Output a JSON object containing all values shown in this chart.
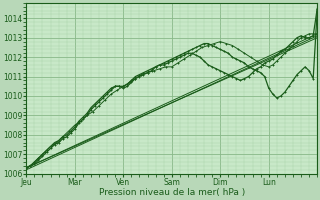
{
  "title": "",
  "xlabel": "Pression niveau de la mer( hPa )",
  "ylabel": "",
  "bg_color": "#b8d8b8",
  "plot_bg_color": "#c8e8c8",
  "grid_major_color": "#88b888",
  "grid_minor_color": "#a8d0a8",
  "line_color": "#1a5c1a",
  "ylim": [
    1006.0,
    1014.8
  ],
  "yticks": [
    1006,
    1007,
    1008,
    1009,
    1010,
    1011,
    1012,
    1013,
    1014
  ],
  "x_day_labels": [
    "Jeu",
    "Mar",
    "Ven",
    "Sam",
    "Dim",
    "Lun"
  ],
  "x_day_positions": [
    0,
    24,
    48,
    72,
    96,
    120
  ],
  "total_hours": 144,
  "line_straight1": {
    "x": [
      0,
      144
    ],
    "y": [
      1006.3,
      1013.2
    ]
  },
  "line_straight2": {
    "x": [
      0,
      144
    ],
    "y": [
      1006.3,
      1013.0
    ]
  },
  "line_straight3": {
    "x": [
      0,
      144
    ],
    "y": [
      1006.2,
      1013.1
    ]
  },
  "line_wavy1": {
    "x": [
      0,
      2,
      4,
      6,
      8,
      10,
      12,
      14,
      16,
      18,
      20,
      22,
      24,
      26,
      28,
      30,
      32,
      34,
      36,
      38,
      40,
      42,
      44,
      46,
      48,
      50,
      52,
      54,
      56,
      58,
      60,
      62,
      64,
      66,
      68,
      70,
      72,
      74,
      76,
      78,
      80,
      82,
      84,
      86,
      88,
      90,
      92,
      94,
      96,
      98,
      100,
      102,
      104,
      106,
      108,
      110,
      112,
      114,
      116,
      118,
      120,
      122,
      124,
      126,
      128,
      130,
      132,
      134,
      136,
      138,
      140,
      142,
      144
    ],
    "y": [
      1006.3,
      1006.4,
      1006.5,
      1006.7,
      1006.9,
      1007.1,
      1007.3,
      1007.5,
      1007.6,
      1007.8,
      1007.9,
      1008.1,
      1008.3,
      1008.6,
      1008.8,
      1009.0,
      1009.3,
      1009.5,
      1009.7,
      1009.9,
      1010.1,
      1010.3,
      1010.5,
      1010.5,
      1010.5,
      1010.6,
      1010.8,
      1011.0,
      1011.1,
      1011.2,
      1011.3,
      1011.4,
      1011.5,
      1011.6,
      1011.6,
      1011.7,
      1011.8,
      1011.9,
      1012.0,
      1012.1,
      1012.2,
      1012.2,
      1012.1,
      1012.0,
      1011.8,
      1011.6,
      1011.5,
      1011.4,
      1011.3,
      1011.2,
      1011.1,
      1011.0,
      1010.9,
      1010.8,
      1010.9,
      1011.0,
      1011.2,
      1011.4,
      1011.5,
      1011.7,
      1011.8,
      1011.9,
      1012.1,
      1012.3,
      1012.4,
      1012.6,
      1012.8,
      1013.0,
      1013.1,
      1013.0,
      1013.0,
      1013.1,
      1014.5
    ]
  },
  "line_wavy2": {
    "x": [
      0,
      2,
      4,
      6,
      8,
      10,
      12,
      14,
      16,
      18,
      20,
      22,
      24,
      26,
      28,
      30,
      32,
      34,
      36,
      38,
      40,
      42,
      44,
      46,
      48,
      50,
      52,
      54,
      56,
      58,
      60,
      62,
      64,
      66,
      68,
      70,
      72,
      74,
      76,
      78,
      80,
      82,
      84,
      86,
      88,
      90,
      92,
      94,
      96,
      98,
      100,
      102,
      104,
      106,
      108,
      110,
      112,
      114,
      116,
      118,
      120,
      122,
      124,
      126,
      128,
      130,
      132,
      134,
      136,
      138,
      140,
      142,
      144
    ],
    "y": [
      1006.3,
      1006.4,
      1006.6,
      1006.8,
      1007.0,
      1007.2,
      1007.4,
      1007.6,
      1007.7,
      1007.9,
      1008.0,
      1008.2,
      1008.4,
      1008.7,
      1008.9,
      1009.1,
      1009.4,
      1009.6,
      1009.8,
      1010.0,
      1010.2,
      1010.4,
      1010.5,
      1010.5,
      1010.4,
      1010.5,
      1010.7,
      1010.9,
      1011.0,
      1011.1,
      1011.2,
      1011.3,
      1011.5,
      1011.6,
      1011.7,
      1011.8,
      1011.9,
      1012.0,
      1012.1,
      1012.2,
      1012.3,
      1012.4,
      1012.5,
      1012.6,
      1012.7,
      1012.7,
      1012.6,
      1012.5,
      1012.4,
      1012.3,
      1012.2,
      1012.0,
      1011.9,
      1011.8,
      1011.7,
      1011.5,
      1011.4,
      1011.3,
      1011.2,
      1011.0,
      1010.4,
      1010.1,
      1009.9,
      1010.0,
      1010.2,
      1010.5,
      1010.8,
      1011.1,
      1011.3,
      1011.5,
      1011.3,
      1010.9,
      1014.4
    ]
  },
  "line_wavy3": {
    "x": [
      0,
      3,
      6,
      9,
      12,
      15,
      18,
      21,
      24,
      27,
      30,
      33,
      36,
      39,
      42,
      45,
      48,
      51,
      54,
      57,
      60,
      63,
      66,
      69,
      72,
      75,
      78,
      81,
      84,
      87,
      90,
      93,
      96,
      99,
      102,
      105,
      108,
      111,
      114,
      117,
      120,
      122,
      124,
      126,
      128,
      130,
      132,
      134,
      136,
      138,
      140,
      142,
      144
    ],
    "y": [
      1006.3,
      1006.5,
      1006.8,
      1007.1,
      1007.4,
      1007.6,
      1007.9,
      1008.2,
      1008.5,
      1008.7,
      1009.0,
      1009.2,
      1009.5,
      1009.8,
      1010.1,
      1010.3,
      1010.5,
      1010.7,
      1010.9,
      1011.1,
      1011.2,
      1011.3,
      1011.4,
      1011.5,
      1011.5,
      1011.7,
      1011.9,
      1012.1,
      1012.3,
      1012.5,
      1012.6,
      1012.7,
      1012.8,
      1012.7,
      1012.6,
      1012.4,
      1012.2,
      1012.0,
      1011.8,
      1011.6,
      1011.5,
      1011.6,
      1011.8,
      1012.0,
      1012.2,
      1012.4,
      1012.6,
      1012.8,
      1013.0,
      1013.1,
      1013.2,
      1013.2,
      1013.2
    ]
  }
}
